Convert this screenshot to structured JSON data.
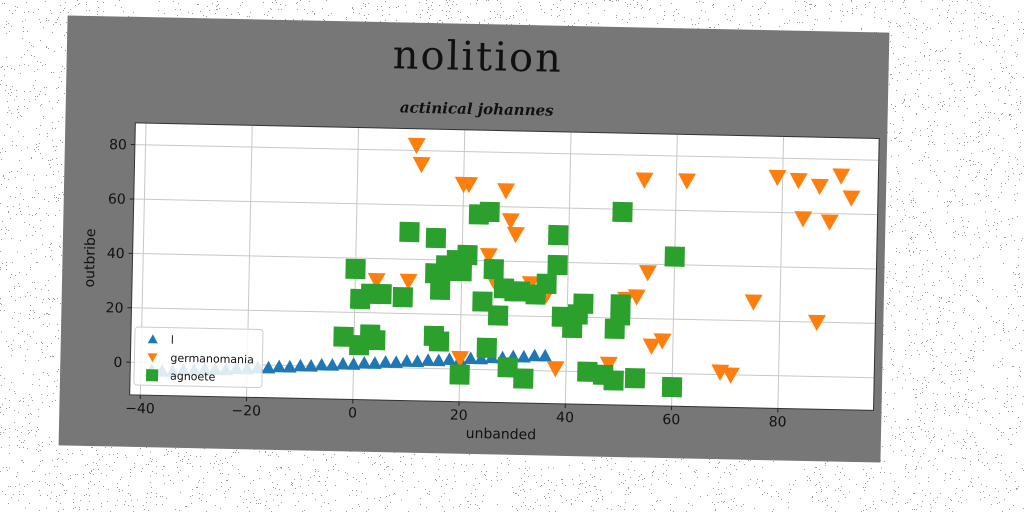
{
  "chart_data": {
    "type": "scatter",
    "title": "nolition",
    "subtitle": "actinical johannes",
    "xlabel": "unbanded",
    "ylabel": "outbribe",
    "xlim": [
      -42,
      98
    ],
    "ylim": [
      -12,
      88
    ],
    "xticks": [
      -40,
      -20,
      0,
      20,
      40,
      60,
      80
    ],
    "yticks": [
      0,
      20,
      40,
      60,
      80
    ],
    "grid": true,
    "legend_position": "lower-left",
    "series": [
      {
        "name": "l",
        "marker": "triangle-up",
        "color": "#1f77b4",
        "points": [
          [
            -38,
            -3
          ],
          [
            -36,
            -3
          ],
          [
            -34,
            -3
          ],
          [
            -32,
            -2.5
          ],
          [
            -30,
            -2.5
          ],
          [
            -28,
            -2
          ],
          [
            -26,
            -2
          ],
          [
            -24,
            -2
          ],
          [
            -22,
            -1.5
          ],
          [
            -20,
            -1.5
          ],
          [
            -18,
            -1
          ],
          [
            -16,
            -1
          ],
          [
            -14,
            -0.5
          ],
          [
            -12,
            -0.5
          ],
          [
            -10,
            0
          ],
          [
            -8,
            0
          ],
          [
            -6,
            0.5
          ],
          [
            -4,
            0.5
          ],
          [
            -2,
            1
          ],
          [
            0,
            1
          ],
          [
            2,
            1.5
          ],
          [
            4,
            1.5
          ],
          [
            6,
            2
          ],
          [
            8,
            2
          ],
          [
            10,
            2.5
          ],
          [
            12,
            2.5
          ],
          [
            14,
            3
          ],
          [
            16,
            3
          ],
          [
            18,
            3.5
          ],
          [
            20,
            3.5
          ],
          [
            22,
            4
          ],
          [
            24,
            4
          ],
          [
            26,
            4.5
          ],
          [
            28,
            4.5
          ],
          [
            30,
            5
          ],
          [
            32,
            5
          ],
          [
            34,
            5.5
          ],
          [
            36,
            5.5
          ]
        ]
      },
      {
        "name": "germanomania",
        "marker": "triangle-down",
        "color": "#ff7f0e",
        "points": [
          [
            11,
            82
          ],
          [
            12,
            75
          ],
          [
            20,
            68
          ],
          [
            21,
            68
          ],
          [
            28,
            66
          ],
          [
            29,
            55
          ],
          [
            30,
            50
          ],
          [
            25,
            42
          ],
          [
            26,
            33
          ],
          [
            33,
            32
          ],
          [
            36,
            28
          ],
          [
            38,
            1
          ],
          [
            48,
            3
          ],
          [
            51,
            27
          ],
          [
            53,
            28
          ],
          [
            54,
            71
          ],
          [
            55,
            37
          ],
          [
            56,
            10
          ],
          [
            58,
            12
          ],
          [
            62,
            71
          ],
          [
            69,
            1
          ],
          [
            71,
            0
          ],
          [
            75,
            27
          ],
          [
            79,
            73
          ],
          [
            83,
            72
          ],
          [
            84,
            58
          ],
          [
            87,
            70
          ],
          [
            87,
            20
          ],
          [
            89,
            57
          ],
          [
            91,
            74
          ],
          [
            93,
            66
          ],
          [
            4,
            32
          ],
          [
            10,
            32
          ],
          [
            20,
            4
          ]
        ]
      },
      {
        "name": "agnoete",
        "marker": "square",
        "color": "#2ca02c",
        "points": [
          [
            0,
            36
          ],
          [
            1,
            25
          ],
          [
            3,
            27
          ],
          [
            5,
            27
          ],
          [
            -2,
            11
          ],
          [
            1,
            8
          ],
          [
            4,
            10
          ],
          [
            3,
            12
          ],
          [
            9,
            26
          ],
          [
            10,
            50
          ],
          [
            15,
            48
          ],
          [
            15,
            35
          ],
          [
            16,
            29
          ],
          [
            17,
            38
          ],
          [
            18,
            36
          ],
          [
            19,
            40
          ],
          [
            20,
            36
          ],
          [
            21,
            42
          ],
          [
            23,
            57
          ],
          [
            24,
            25
          ],
          [
            25,
            58
          ],
          [
            26,
            37
          ],
          [
            27,
            20
          ],
          [
            28,
            30
          ],
          [
            29,
            1
          ],
          [
            30,
            29
          ],
          [
            31,
            29
          ],
          [
            32,
            -3
          ],
          [
            34,
            28
          ],
          [
            36,
            32
          ],
          [
            38,
            50
          ],
          [
            38,
            39
          ],
          [
            39,
            20
          ],
          [
            41,
            16
          ],
          [
            42,
            21
          ],
          [
            43,
            25
          ],
          [
            44,
            0
          ],
          [
            47,
            -1
          ],
          [
            49,
            -3
          ],
          [
            49,
            16
          ],
          [
            50,
            21
          ],
          [
            50,
            25
          ],
          [
            50,
            59
          ],
          [
            53,
            -2
          ],
          [
            60,
            43
          ],
          [
            60,
            -5
          ],
          [
            15,
            12
          ],
          [
            16,
            10
          ],
          [
            25,
            8
          ],
          [
            20,
            -2
          ]
        ]
      }
    ]
  }
}
